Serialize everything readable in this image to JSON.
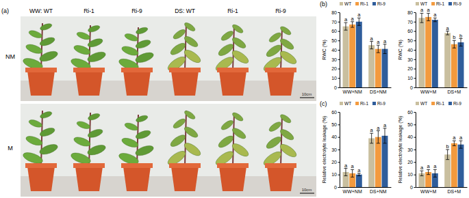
{
  "panel_labels": [
    "(a)",
    "(b)",
    "(c)"
  ],
  "photo": {
    "columns": [
      "WW: WT",
      "Ri-1",
      "Ri-9",
      "DS: WT",
      "Ri-1",
      "Ri-9"
    ],
    "rows": [
      "NM",
      "M"
    ],
    "scale_bar": "10cm"
  },
  "chart_data": [
    {
      "type": "bar",
      "y_label": "RWC (%)",
      "categories": [
        "WW+NM",
        "DS+NM"
      ],
      "ylim": [
        0,
        80
      ],
      "yticks": [
        0,
        10,
        20,
        30,
        40,
        50,
        60,
        70,
        80
      ],
      "grid": false,
      "legend": "top",
      "series": [
        {
          "name": "WT",
          "color": "#c9bf9f",
          "values": [
            65,
            45
          ],
          "errors": [
            4,
            4
          ],
          "letters": [
            "a",
            "a"
          ]
        },
        {
          "name": "Ri-1",
          "color": "#f39a3e",
          "values": [
            67,
            41
          ],
          "errors": [
            3,
            4
          ],
          "letters": [
            "a",
            "a"
          ]
        },
        {
          "name": "Ri-9",
          "color": "#2f5d9b",
          "values": [
            70,
            41
          ],
          "errors": [
            4,
            5
          ],
          "letters": [
            "a",
            "a"
          ]
        }
      ]
    },
    {
      "type": "bar",
      "y_label": "RWC (%)",
      "categories": [
        "WW+M",
        "DS+M"
      ],
      "ylim": [
        0,
        80
      ],
      "yticks": [
        0,
        10,
        20,
        30,
        40,
        50,
        60,
        70,
        80
      ],
      "grid": false,
      "legend": "top",
      "series": [
        {
          "name": "WT",
          "color": "#c9bf9f",
          "values": [
            74,
            58
          ],
          "errors": [
            5,
            2
          ],
          "letters": [
            "a",
            "a"
          ]
        },
        {
          "name": "Ri-1",
          "color": "#f39a3e",
          "values": [
            75,
            46
          ],
          "errors": [
            4,
            4
          ],
          "letters": [
            "a",
            "b"
          ]
        },
        {
          "name": "Ri-9",
          "color": "#2f5d9b",
          "values": [
            72,
            48
          ],
          "errors": [
            2,
            4
          ],
          "letters": [
            "a",
            "b"
          ]
        }
      ]
    },
    {
      "type": "bar",
      "y_label": "Relative electrolyte leakage (%)",
      "categories": [
        "WW+NM",
        "DS+NM"
      ],
      "ylim": [
        0,
        60
      ],
      "yticks": [
        0,
        10,
        20,
        30,
        40,
        50,
        60
      ],
      "grid": false,
      "legend": "top",
      "series": [
        {
          "name": "WT",
          "color": "#c9bf9f",
          "values": [
            12,
            39
          ],
          "errors": [
            3,
            4
          ],
          "letters": [
            "a",
            "a"
          ]
        },
        {
          "name": "Ri-1",
          "color": "#f39a3e",
          "values": [
            11,
            40
          ],
          "errors": [
            3,
            5
          ],
          "letters": [
            "a",
            "a"
          ]
        },
        {
          "name": "Ri-9",
          "color": "#2f5d9b",
          "values": [
            10,
            41
          ],
          "errors": [
            1,
            6
          ],
          "letters": [
            "a",
            "a"
          ]
        }
      ]
    },
    {
      "type": "bar",
      "y_label": "Relative electrolyte leakage (%)",
      "categories": [
        "WW+M",
        "DS+M"
      ],
      "ylim": [
        0,
        60
      ],
      "yticks": [
        0,
        10,
        20,
        30,
        40,
        50,
        60
      ],
      "grid": false,
      "legend": "top",
      "series": [
        {
          "name": "WT",
          "color": "#c9bf9f",
          "values": [
            11,
            26
          ],
          "errors": [
            2,
            4
          ],
          "letters": [
            "a",
            "b"
          ]
        },
        {
          "name": "Ri-1",
          "color": "#f39a3e",
          "values": [
            12,
            35
          ],
          "errors": [
            2,
            2
          ],
          "letters": [
            "a",
            "a"
          ]
        },
        {
          "name": "Ri-9",
          "color": "#2f5d9b",
          "values": [
            11,
            34
          ],
          "errors": [
            3,
            3
          ],
          "letters": [
            "a",
            "a"
          ]
        }
      ]
    }
  ]
}
